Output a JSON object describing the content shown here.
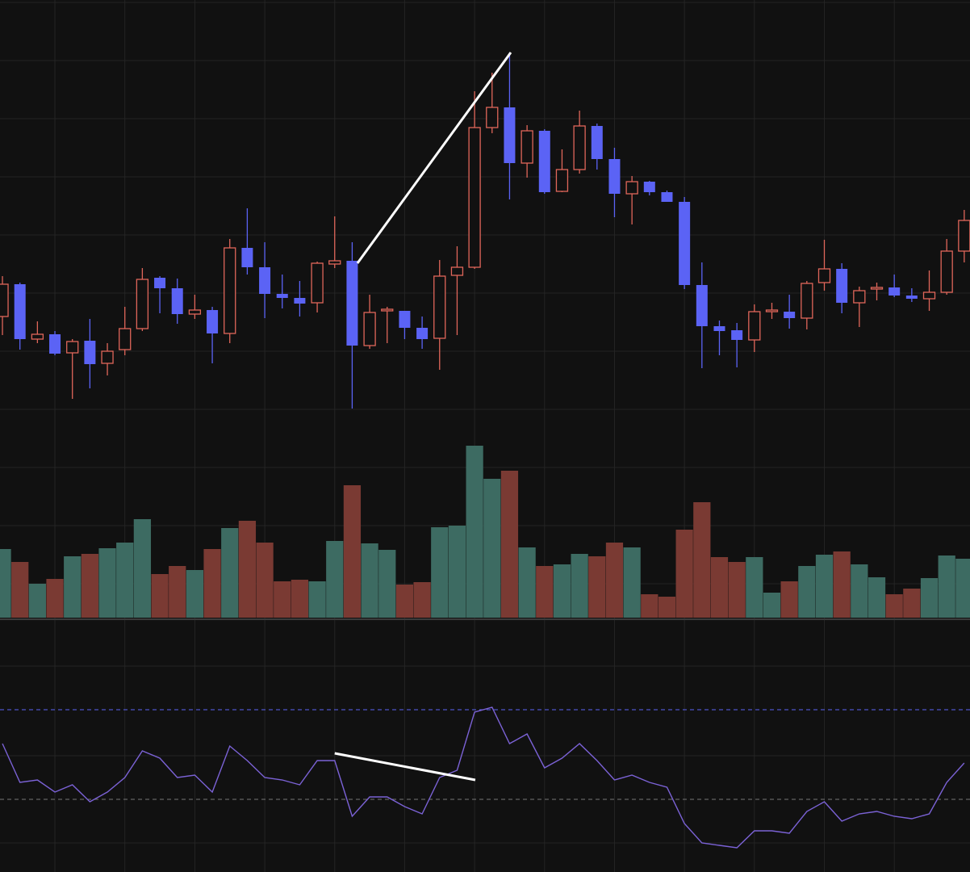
{
  "chart_data": [
    {
      "type": "candlestick",
      "open": [
        208,
        248,
        180,
        186,
        163,
        178,
        150,
        167,
        193,
        256,
        243,
        211,
        216,
        187,
        293,
        269,
        236,
        231,
        225,
        273,
        277,
        172,
        215,
        215,
        194,
        181,
        259,
        269,
        442,
        467,
        398,
        438,
        363,
        390,
        444,
        403,
        360,
        375,
        362,
        350,
        247,
        196,
        191,
        179,
        214,
        214,
        206,
        250,
        267,
        225,
        242,
        244,
        234,
        230,
        238,
        289
      ],
      "high": [
        258,
        250,
        202,
        190,
        180,
        205,
        175,
        220,
        268,
        258,
        255,
        235,
        220,
        304,
        342,
        300,
        260,
        252,
        276,
        332,
        300,
        235,
        220,
        215,
        208,
        278,
        295,
        487,
        510,
        535,
        445,
        440,
        415,
        463,
        447,
        417,
        382,
        376,
        364,
        356,
        275,
        203,
        200,
        223,
        225,
        235,
        252,
        303,
        274,
        245,
        250,
        260,
        243,
        265,
        304,
        340
      ],
      "low": [
        185,
        167,
        175,
        160,
        106,
        119,
        135,
        160,
        190,
        212,
        199,
        205,
        150,
        175,
        260,
        206,
        218,
        208,
        213,
        268,
        94,
        168,
        175,
        180,
        168,
        142,
        185,
        267,
        435,
        353,
        380,
        360,
        362,
        385,
        390,
        331,
        322,
        358,
        350,
        242,
        144,
        160,
        145,
        164,
        205,
        193,
        192,
        240,
        212,
        195,
        228,
        232,
        226,
        215,
        235,
        275
      ],
      "close": [
        248,
        180,
        186,
        162,
        177,
        149,
        165,
        193,
        254,
        243,
        211,
        216,
        187,
        293,
        269,
        236,
        231,
        224,
        274,
        277,
        172,
        213,
        217,
        194,
        180,
        258,
        269,
        442,
        467,
        398,
        438,
        362,
        390,
        444,
        403,
        360,
        375,
        362,
        350,
        247,
        196,
        190,
        179,
        214,
        216,
        206,
        249,
        267,
        225,
        240,
        244,
        234,
        230,
        238,
        289,
        327
      ],
      "up_color": "#e0665a",
      "down_color": "#5b63f5",
      "xlim": [
        -0.14,
        55.33
      ],
      "ylim": [
        -165,
        600
      ],
      "yticks": [
        597,
        525,
        453,
        381,
        309,
        237,
        165,
        93,
        21,
        -51,
        -123
      ],
      "xticks": [
        3,
        7,
        11,
        15,
        19,
        23,
        27,
        31,
        35,
        39,
        43,
        47,
        51
      ],
      "grid": true,
      "trendline": {
        "x": [
          20.3,
          29.07
        ],
        "y": [
          274,
          535
        ],
        "color": "#ffffff"
      }
    },
    {
      "type": "bar",
      "values": [
        85,
        69,
        42,
        48,
        76,
        79,
        86,
        93,
        122,
        54,
        64,
        59,
        85,
        111,
        120,
        93,
        45,
        47,
        45,
        95,
        164,
        92,
        84,
        41,
        44,
        112,
        114,
        213,
        172,
        182,
        87,
        64,
        66,
        79,
        76,
        93,
        87,
        29,
        26,
        109,
        143,
        75,
        69,
        75,
        31,
        45,
        64,
        78,
        82,
        66,
        50,
        29,
        36,
        49,
        77,
        73
      ],
      "up_color": "#3d6b62",
      "down_color": "#7a3a33",
      "ylim": [
        0,
        300
      ]
    },
    {
      "type": "line",
      "values": [
        53,
        37,
        38,
        33,
        36,
        29,
        33,
        39,
        50,
        47,
        39,
        40,
        33,
        52,
        46,
        39,
        38,
        36,
        46,
        46,
        23,
        31,
        31,
        27,
        24,
        39,
        42,
        66,
        68,
        53,
        57,
        43,
        47,
        53,
        46,
        38,
        40,
        37,
        35,
        20,
        12,
        11,
        10,
        17,
        17,
        16,
        25,
        29,
        21,
        24,
        25,
        23,
        22,
        24,
        37,
        45
      ],
      "color": "#7b62d6",
      "ylim": [
        0,
        100
      ],
      "yticks": [
        85,
        48,
        12
      ],
      "levels": [
        67,
        30
      ],
      "level_colors": [
        "#5b63f5",
        "#777777"
      ],
      "trendline": {
        "x": [
          19,
          27.04
        ],
        "y": [
          49,
          38
        ],
        "color": "#ffffff"
      }
    }
  ]
}
